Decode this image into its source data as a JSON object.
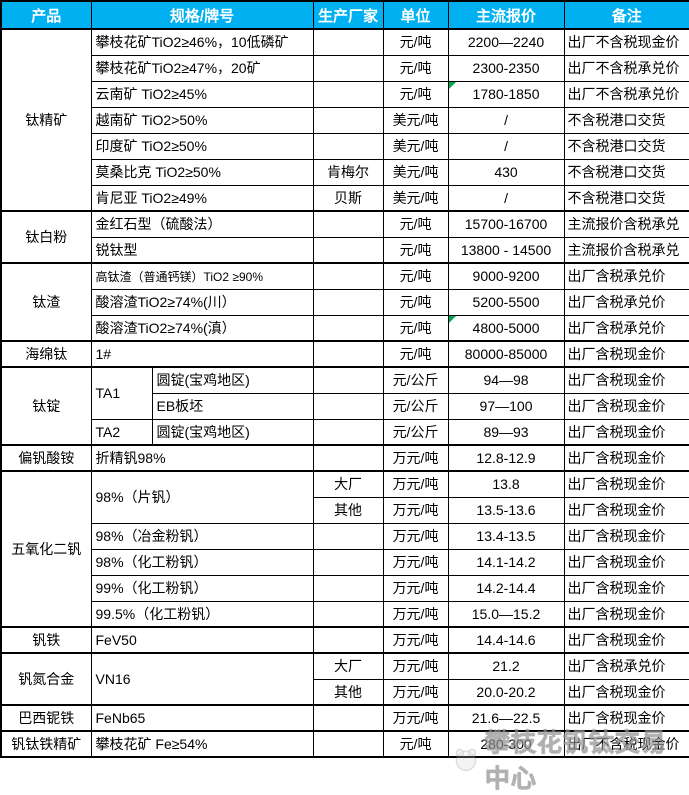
{
  "table": {
    "header": [
      "产品",
      "规格/牌号",
      "生产厂家",
      "单位",
      "主流报价",
      "备注"
    ],
    "rows": [
      {
        "product": "钛精矿",
        "product_rowspan": 7,
        "group_start": true,
        "spec": "攀枝花矿TiO2≥46%，10低磷矿",
        "producer": "",
        "unit": "元/吨",
        "price": "2200—2240",
        "remark": "出厂不含税现金价"
      },
      {
        "spec": "攀枝花矿TiO2≥47%，20矿",
        "producer": "",
        "unit": "元/吨",
        "price": "2300-2350",
        "remark": "出厂不含税承兑价"
      },
      {
        "spec": "云南矿 TiO2≥45%",
        "producer": "",
        "unit": "元/吨",
        "price": "1780-1850",
        "remark": "出厂不含税承兑价",
        "price_flag": true
      },
      {
        "spec": "越南矿 TiO2>50%",
        "producer": "",
        "unit": "美元/吨",
        "price": "/",
        "remark": "不含税港口交货"
      },
      {
        "spec": "印度矿 TiO2≥50%",
        "producer": "",
        "unit": "美元/吨",
        "price": "/",
        "remark": "不含税港口交货"
      },
      {
        "spec": "莫桑比克 TiO2≥50%",
        "producer": "肯梅尔",
        "unit": "美元/吨",
        "price": "430",
        "remark": "不含税港口交货"
      },
      {
        "spec": "肯尼亚 TiO2≥49%",
        "producer": "贝斯",
        "unit": "美元/吨",
        "price": "/",
        "remark": "不含税港口交货"
      },
      {
        "product": "钛白粉",
        "product_rowspan": 2,
        "group_start": true,
        "spec": "金红石型（硫酸法）",
        "producer": "",
        "unit": "元/吨",
        "price": "15700-16700",
        "remark": "主流报价含税承兑"
      },
      {
        "spec": "锐钛型",
        "producer": "",
        "unit": "元/吨",
        "price": "13800 - 14500",
        "remark": "主流报价含税承兑"
      },
      {
        "product": "钛渣",
        "product_rowspan": 3,
        "group_start": true,
        "spec": "高钛渣（普通钙镁）TiO2 ≥90%",
        "spec_small": true,
        "producer": "",
        "unit": "元/吨",
        "price": "9000-9200",
        "remark": "出厂含税承兑价"
      },
      {
        "spec": "酸溶渣TiO2≥74%(川）",
        "producer": "",
        "unit": "元/吨",
        "price": "5200-5500",
        "remark": "出厂含税承兑价"
      },
      {
        "spec": "酸溶渣TiO2≥74%(滇）",
        "producer": "",
        "unit": "元/吨",
        "price": "4800-5000",
        "remark": "出厂含税承兑价",
        "price_flag": true
      },
      {
        "product": "海绵钛",
        "product_rowspan": 1,
        "group_start": true,
        "spec": "1#",
        "producer": "",
        "unit": "元/吨",
        "price": "80000-85000",
        "remark": "出厂含税现金价"
      },
      {
        "product": "钛锭",
        "product_rowspan": 3,
        "group_start": true,
        "spec_a": "TA1",
        "spec_a_rowspan": 2,
        "spec_b": "圆锭(宝鸡地区)",
        "producer": "",
        "unit": "元/公斤",
        "price": "94—98",
        "remark": "出厂含税现金价"
      },
      {
        "spec_b": "EB板坯",
        "producer": "",
        "unit": "元/公斤",
        "price": "97—100",
        "remark": "出厂含税现金价"
      },
      {
        "spec_a": "TA2",
        "spec_a_rowspan": 1,
        "spec_b": "圆锭(宝鸡地区)",
        "producer": "",
        "unit": "元/公斤",
        "price": "89—93",
        "remark": "出厂含税现金价"
      },
      {
        "product": "偏钒酸铵",
        "product_rowspan": 1,
        "group_start": true,
        "spec": "折精钒98%",
        "producer": "",
        "unit": "万元/吨",
        "price": "12.8-12.9",
        "remark": "出厂含税现金价"
      },
      {
        "product": "五氧化二钒",
        "product_rowspan": 6,
        "group_start": true,
        "spec": "98%（片钒）",
        "spec_rowspan": 2,
        "producer": "大厂",
        "unit": "万元/吨",
        "price": "13.8",
        "remark": "出厂含税现金价"
      },
      {
        "producer": "其他",
        "unit": "万元/吨",
        "price": "13.5-13.6",
        "remark": "出厂含税现金价"
      },
      {
        "spec": "98%（冶金粉钒）",
        "producer": "",
        "unit": "万元/吨",
        "price": "13.4-13.5",
        "remark": "出厂含税现金价"
      },
      {
        "spec": "98%（化工粉钒）",
        "producer": "",
        "unit": "万元/吨",
        "price": "14.1-14.2",
        "remark": "出厂含税现金价"
      },
      {
        "spec": "99%（化工粉钒）",
        "producer": "",
        "unit": "万元/吨",
        "price": "14.2-14.4",
        "remark": "出厂含税现金价"
      },
      {
        "spec": "99.5%（化工粉钒）",
        "producer": "",
        "unit": "万元/吨",
        "price": "15.0—15.2",
        "remark": "出厂含税现金价"
      },
      {
        "product": "钒铁",
        "product_rowspan": 1,
        "group_start": true,
        "spec": "FeV50",
        "producer": "",
        "unit": "万元/吨",
        "price": "14.4-14.6",
        "remark": "出厂含税现金价"
      },
      {
        "product": "钒氮合金",
        "product_rowspan": 2,
        "group_start": true,
        "spec": "VN16",
        "spec_rowspan": 2,
        "producer": "大厂",
        "unit": "万元/吨",
        "price": "21.2",
        "remark": "出厂含税承兑价"
      },
      {
        "producer": "其他",
        "unit": "万元/吨",
        "price": "20.0-20.2",
        "remark": "出厂含税现金价"
      },
      {
        "product": "巴西铌铁",
        "product_rowspan": 1,
        "group_start": true,
        "spec": "FeNb65",
        "producer": "",
        "unit": "万元/吨",
        "price": "21.6—22.5",
        "remark": "出厂含税现金价"
      },
      {
        "product": "钒钛铁精矿",
        "product_rowspan": 1,
        "group_start": true,
        "spec": "攀枝花矿 Fe≥54%",
        "producer": "",
        "unit": "元/吨",
        "price": "280-300",
        "remark": "出厂不含税现金价"
      }
    ]
  },
  "watermark": {
    "text": "攀枝花钒钛交易中心"
  },
  "colors": {
    "header_bg": "#00B0F0",
    "header_text": "#FFFFFF",
    "border": "#000000",
    "flag_green": "#00A650",
    "watermark_gray": "#A5A5A5"
  }
}
